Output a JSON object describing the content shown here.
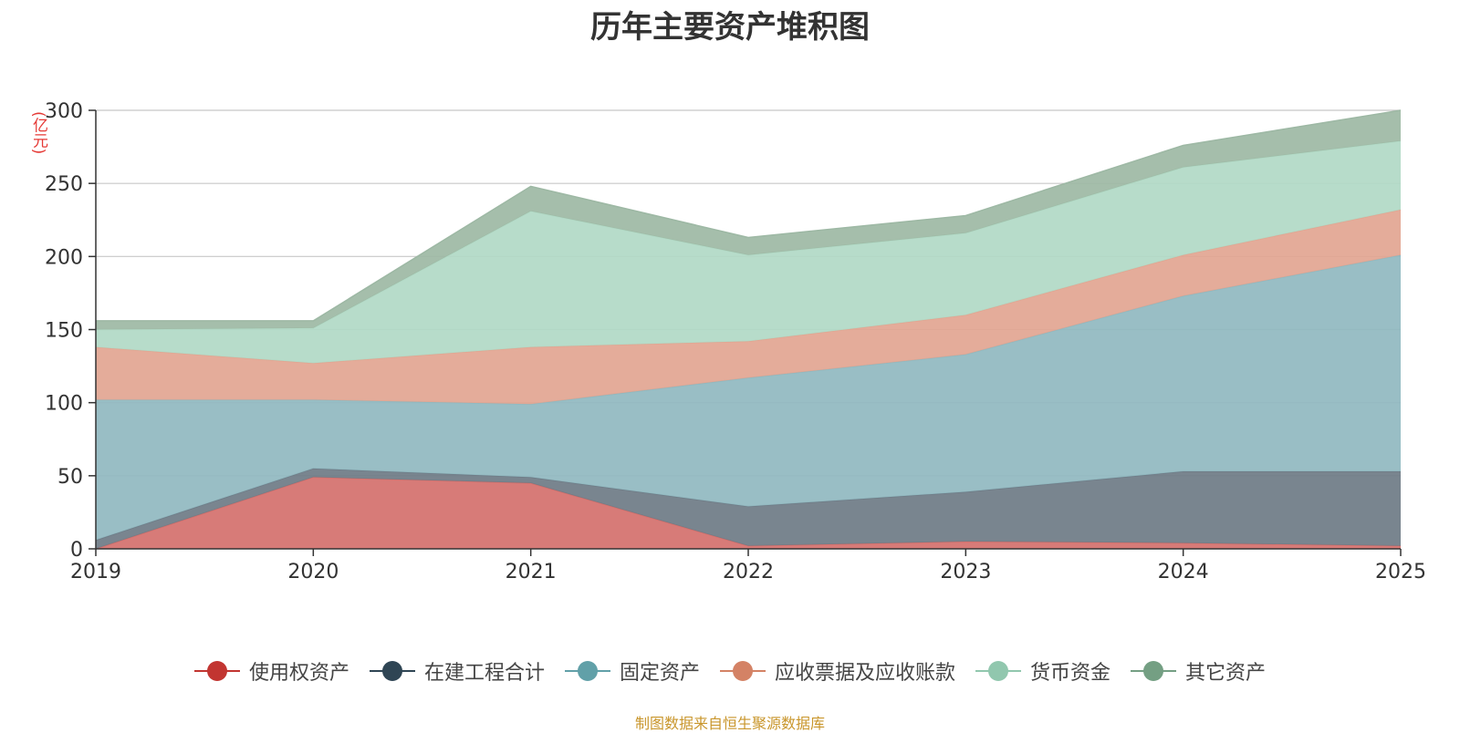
{
  "chart_data": {
    "type": "area",
    "stacked": true,
    "title": "历年主要资产堆积图",
    "unit_label": "(亿元)",
    "categories": [
      "2019",
      "2020",
      "2021",
      "2022",
      "2023",
      "2024",
      "2025"
    ],
    "ylim": [
      0,
      300
    ],
    "yticks": [
      0,
      50,
      100,
      150,
      200,
      250,
      300
    ],
    "grid": true,
    "legend_position": "bottom",
    "series": [
      {
        "name": "使用权资产",
        "color": "#c23531",
        "fill": "#d4706c",
        "values": [
          0,
          49,
          45,
          2,
          5,
          4,
          2
        ]
      },
      {
        "name": "在建工程合计",
        "color": "#2f4554",
        "fill": "#6e7b86",
        "values": [
          6,
          6,
          4,
          27,
          34,
          49,
          51
        ]
      },
      {
        "name": "固定资产",
        "color": "#61a0a8",
        "fill": "#90b9c0",
        "values": [
          96,
          47,
          50,
          88,
          94,
          120,
          148
        ]
      },
      {
        "name": "应收票据及应收账款",
        "color": "#d48265",
        "fill": "#e2a591",
        "values": [
          36,
          25,
          39,
          25,
          27,
          28,
          31
        ]
      },
      {
        "name": "货币资金",
        "color": "#91c7ae",
        "fill": "#b1d9c5",
        "values": [
          12,
          24,
          93,
          59,
          56,
          60,
          47
        ]
      },
      {
        "name": "其它资产",
        "color": "#749f83",
        "fill": "#9db8a4",
        "values": [
          6,
          5,
          17,
          12,
          12,
          15,
          21
        ]
      }
    ]
  },
  "source_text": "制图数据来自恒生聚源数据库"
}
